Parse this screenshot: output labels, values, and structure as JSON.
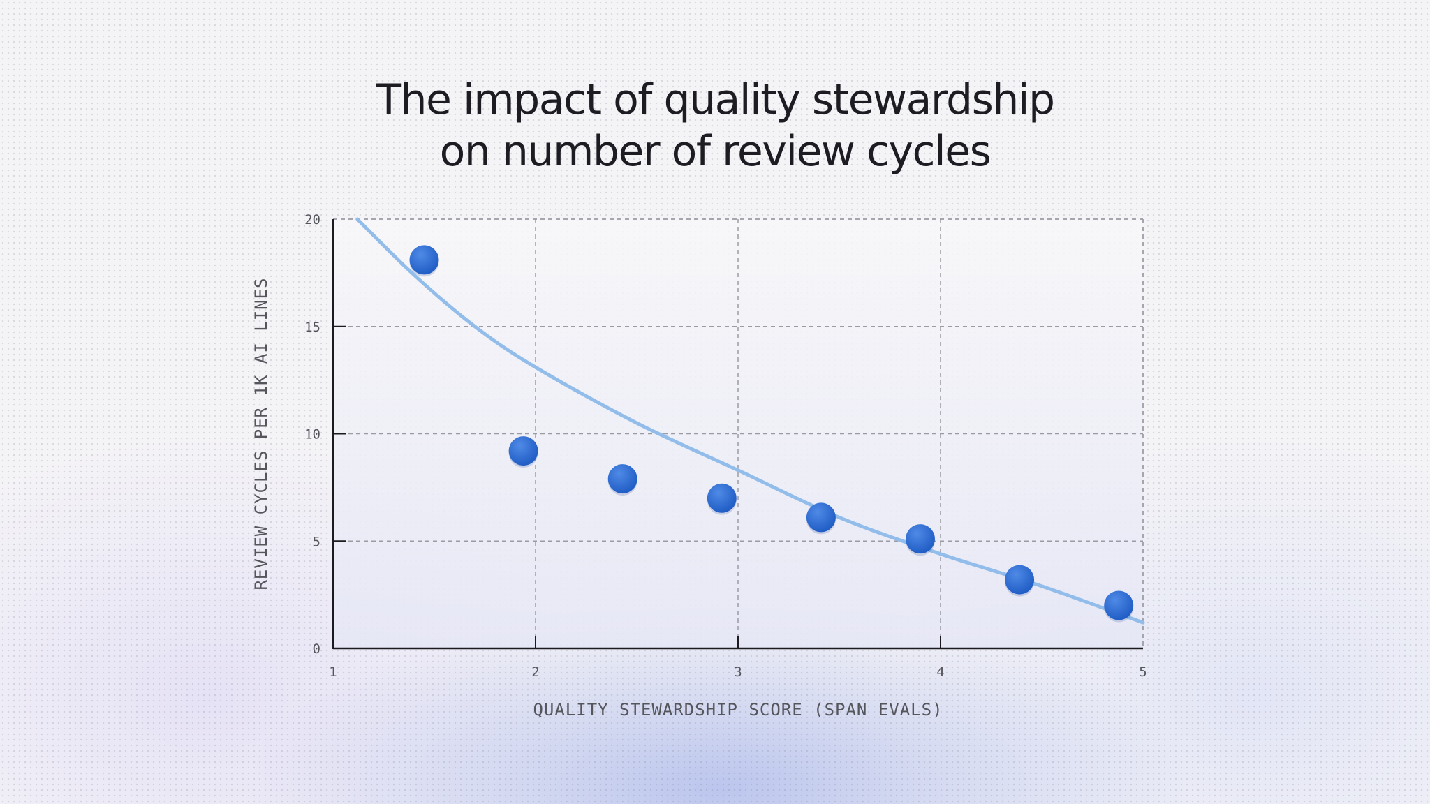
{
  "title_lines": [
    "The impact of quality stewardship",
    "on number of review cycles"
  ],
  "chart_data": {
    "type": "scatter",
    "title": "The impact of quality stewardship on number of review cycles",
    "xlabel": "QUALITY STEWARDSHIP SCORE (SPAN EVALS)",
    "ylabel": "REVIEW CYCLES PER 1K AI LINES",
    "xlim": [
      1,
      5
    ],
    "ylim": [
      0,
      20
    ],
    "x_ticks": [
      "1",
      "2",
      "3",
      "4",
      "5"
    ],
    "y_ticks": [
      "0",
      "5",
      "10",
      "15",
      "20"
    ],
    "grid": true,
    "points": [
      {
        "x": 1.45,
        "y": 18.1
      },
      {
        "x": 1.94,
        "y": 9.2
      },
      {
        "x": 2.43,
        "y": 7.9
      },
      {
        "x": 2.92,
        "y": 7.0
      },
      {
        "x": 3.41,
        "y": 6.1
      },
      {
        "x": 3.9,
        "y": 5.1
      },
      {
        "x": 4.39,
        "y": 3.2
      },
      {
        "x": 4.88,
        "y": 2.0
      }
    ],
    "trend_line": {
      "type": "fit",
      "x": [
        1.12,
        1.4,
        1.7,
        2.0,
        2.5,
        3.0,
        3.5,
        4.0,
        4.5,
        5.0
      ],
      "y": [
        20.0,
        17.4,
        15.0,
        13.1,
        10.5,
        8.3,
        6.1,
        4.4,
        2.9,
        1.2
      ]
    },
    "colors": {
      "point": "#2f6ed4",
      "trend": "#92bdea",
      "axis": "#1a1a1f",
      "grid": "#9b9ba3"
    }
  }
}
